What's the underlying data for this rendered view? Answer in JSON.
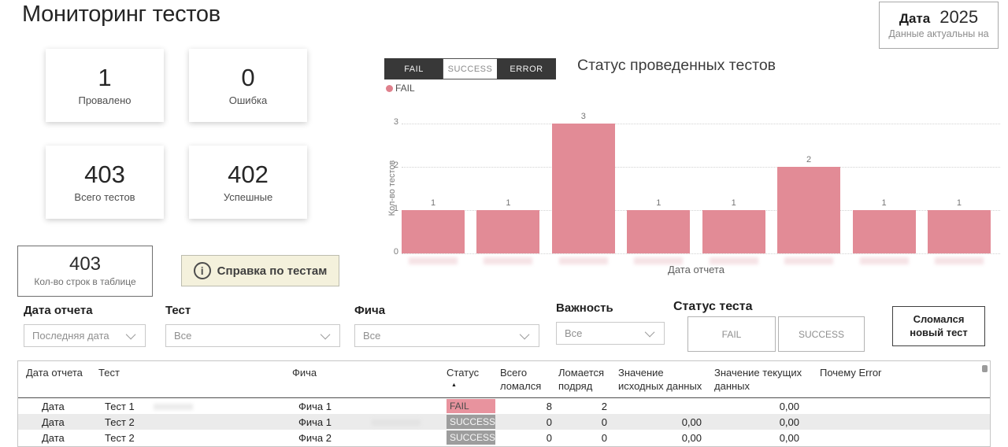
{
  "page_title": "Мониторинг тестов",
  "date_box": {
    "label": "Дата",
    "value": "2025",
    "subtitle": "Данные актуальны на"
  },
  "kpi_cards": [
    {
      "value": "1",
      "label": "Провалено"
    },
    {
      "value": "0",
      "label": "Ошибка"
    },
    {
      "value": "403",
      "label": "Всего тестов"
    },
    {
      "value": "402",
      "label": "Успешные"
    }
  ],
  "row_count_box": {
    "value": "403",
    "label": "Кол-во строк в таблице"
  },
  "help_button": {
    "icon": "info-icon",
    "label": "Справка по тестам"
  },
  "chart": {
    "controls": [
      {
        "label": "FAIL",
        "style": "dark"
      },
      {
        "label": "SUCCESS",
        "style": "light"
      },
      {
        "label": "ERROR",
        "style": "dark"
      }
    ],
    "legend": [
      {
        "label": "FAIL",
        "color": "#df808c"
      }
    ]
  },
  "chart_data": {
    "type": "bar",
    "title": "Статус проведенных тестов",
    "series": [
      {
        "name": "FAIL",
        "values": [
          1,
          1,
          3,
          1,
          1,
          2,
          1,
          1
        ]
      }
    ],
    "categories": [
      "",
      "",
      "",
      "",
      "",
      "",
      "",
      ""
    ],
    "xlabel": "Дата отчета",
    "ylabel": "Кол-во тестов",
    "yticks": [
      0,
      1,
      2,
      3
    ],
    "ylim": [
      0,
      3
    ],
    "grid": "dotted",
    "bar_color": "#e28b96",
    "legend_position": "top-left",
    "note": "x tick labels are blurred out in source"
  },
  "filters": [
    {
      "label": "Дата отчета",
      "value": "Последняя дата"
    },
    {
      "label": "Тест",
      "value": "Все"
    },
    {
      "label": "Фича",
      "value": "Все"
    },
    {
      "label": "Важность",
      "value": "Все"
    }
  ],
  "status_filter": {
    "label": "Статус теста",
    "buttons": [
      "FAIL",
      "SUCCESS"
    ]
  },
  "broke_button": {
    "label": "Сломался\nновый тест"
  },
  "table": {
    "columns": [
      "Дата отчета",
      "Тест",
      "Фича",
      "Статус",
      "Всего ломался",
      "Ломается подряд",
      "Значение исходных данных",
      "Значение текущих данных",
      "Почему Error"
    ],
    "sort_column": "Статус",
    "rows": [
      [
        "Дата",
        "Тест 1",
        "Фича 1",
        "FAIL",
        "8",
        "2",
        "",
        "0,00",
        ""
      ],
      [
        "Дата",
        "Тест 2",
        "Фича 1",
        "SUCCESS",
        "0",
        "0",
        "0,00",
        "0,00",
        ""
      ],
      [
        "Дата",
        "Тест 2",
        "Фича 2",
        "SUCCESS",
        "0",
        "0",
        "0,00",
        "0,00",
        ""
      ]
    ]
  },
  "colors": {
    "bar": "#e28b96",
    "legend_dot": "#df808c",
    "fail_badge_bg": "#e8939e",
    "fail_badge_text": "#4a4a4a",
    "success_badge_bg": "#9d9d9d",
    "success_badge_text": "#f7f7f7",
    "dark_button": "#383838",
    "help_bg": "#f4f1dc"
  }
}
